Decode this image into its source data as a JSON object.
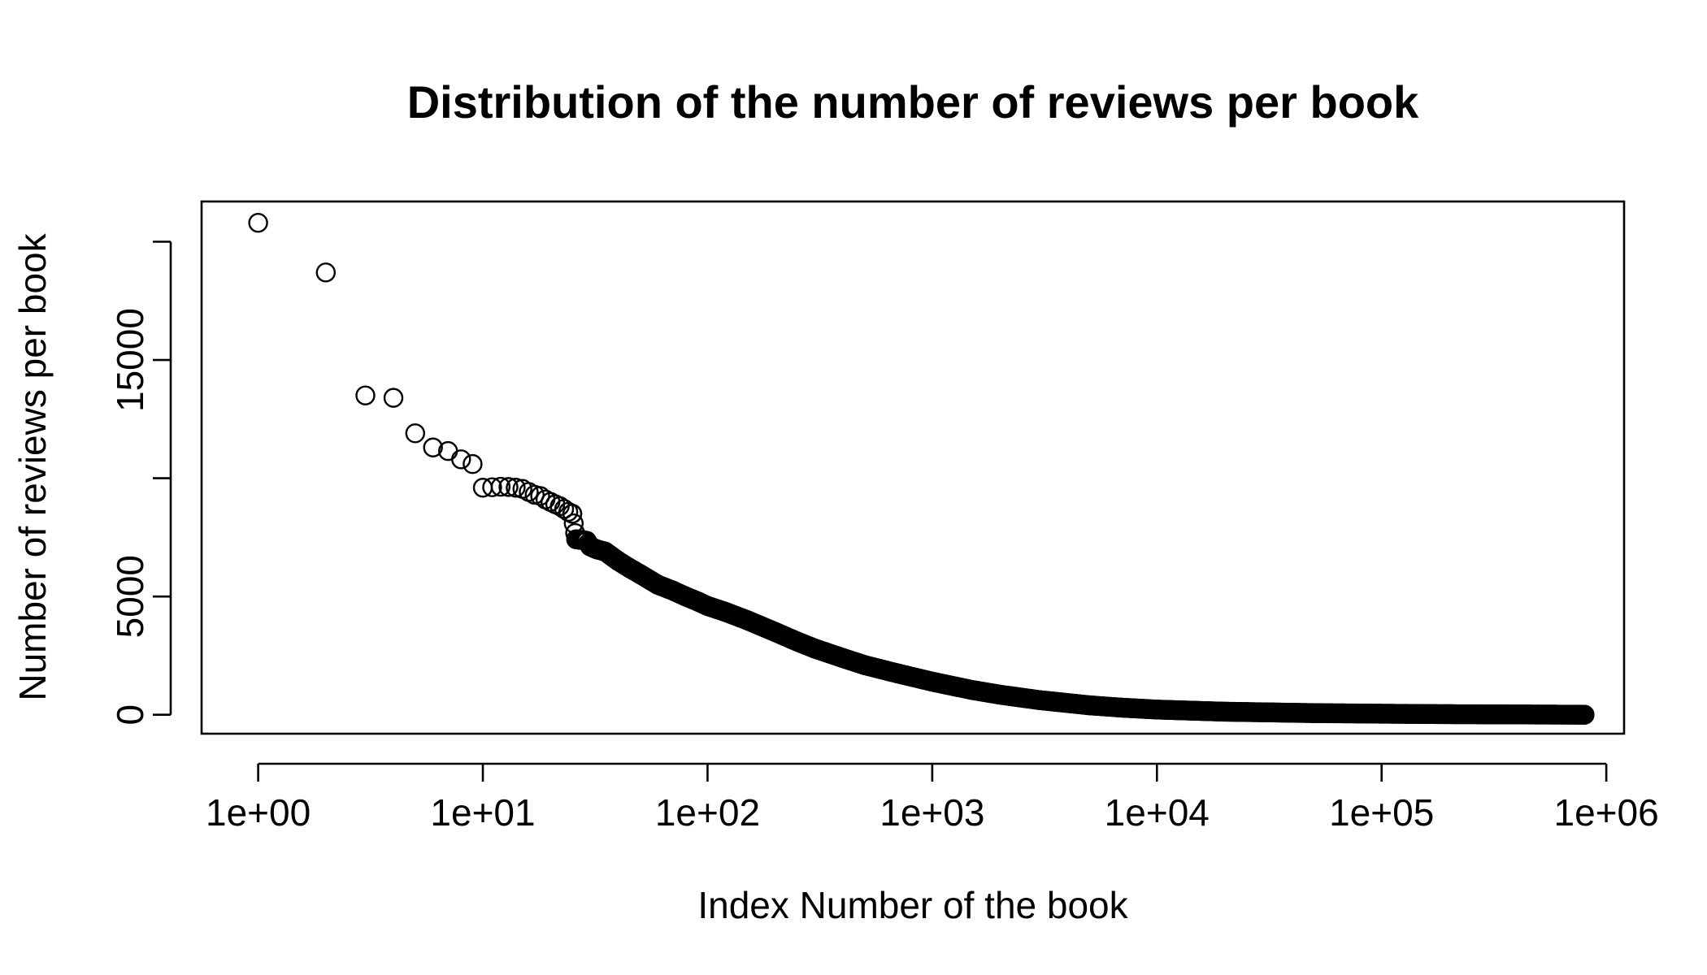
{
  "chart_data": {
    "type": "scatter",
    "title": "Distribution of the number of reviews per book",
    "xlabel": "Index Number of the book",
    "ylabel": "Number of reviews per book",
    "x_scale": "log10",
    "xlim": [
      0.56,
      1200000
    ],
    "ylim": [
      -800,
      21700
    ],
    "x_ticks": [
      1,
      10,
      100,
      1000,
      10000,
      100000,
      1000000
    ],
    "x_tick_labels": [
      "1e+00",
      "1e+01",
      "1e+02",
      "1e+03",
      "1e+04",
      "1e+05",
      "1e+06"
    ],
    "y_ticks": [
      0,
      5000,
      10000,
      15000,
      20000
    ],
    "y_tick_labels": [
      "0",
      "5000",
      "",
      "15000",
      ""
    ],
    "marker": "open-circle",
    "grid": false,
    "legend": "none",
    "points": [
      [
        1,
        20800
      ],
      [
        2,
        18700
      ],
      [
        3,
        13500
      ],
      [
        4,
        13400
      ],
      [
        5,
        11900
      ],
      [
        6,
        11300
      ],
      [
        7,
        11150
      ],
      [
        8,
        10800
      ],
      [
        9,
        10600
      ],
      [
        10,
        9600
      ],
      [
        11,
        9620
      ],
      [
        12,
        9640
      ],
      [
        13,
        9630
      ],
      [
        14,
        9600
      ],
      [
        15,
        9550
      ],
      [
        16,
        9420
      ],
      [
        17,
        9300
      ],
      [
        18,
        9250
      ],
      [
        19,
        9100
      ],
      [
        20,
        9000
      ],
      [
        21,
        8900
      ],
      [
        22,
        8820
      ],
      [
        23,
        8700
      ],
      [
        24,
        8580
      ],
      [
        25,
        8500
      ],
      [
        26,
        7420
      ],
      [
        27,
        7400
      ],
      [
        28,
        7380
      ],
      [
        29,
        7350
      ],
      [
        30,
        7120
      ],
      [
        32,
        7000
      ],
      [
        35,
        6900
      ],
      [
        40,
        6500
      ],
      [
        45,
        6200
      ],
      [
        50,
        5950
      ],
      [
        60,
        5500
      ],
      [
        70,
        5250
      ],
      [
        80,
        5000
      ],
      [
        90,
        4800
      ],
      [
        100,
        4600
      ],
      [
        120,
        4350
      ],
      [
        150,
        4000
      ],
      [
        200,
        3500
      ],
      [
        250,
        3100
      ],
      [
        300,
        2800
      ],
      [
        400,
        2400
      ],
      [
        500,
        2100
      ],
      [
        700,
        1750
      ],
      [
        1000,
        1400
      ],
      [
        1500,
        1050
      ],
      [
        2000,
        850
      ],
      [
        3000,
        620
      ],
      [
        5000,
        400
      ],
      [
        7000,
        300
      ],
      [
        10000,
        220
      ],
      [
        20000,
        130
      ],
      [
        50000,
        70
      ],
      [
        100000,
        45
      ],
      [
        200000,
        25
      ],
      [
        500000,
        10
      ],
      [
        800000,
        2
      ]
    ]
  }
}
